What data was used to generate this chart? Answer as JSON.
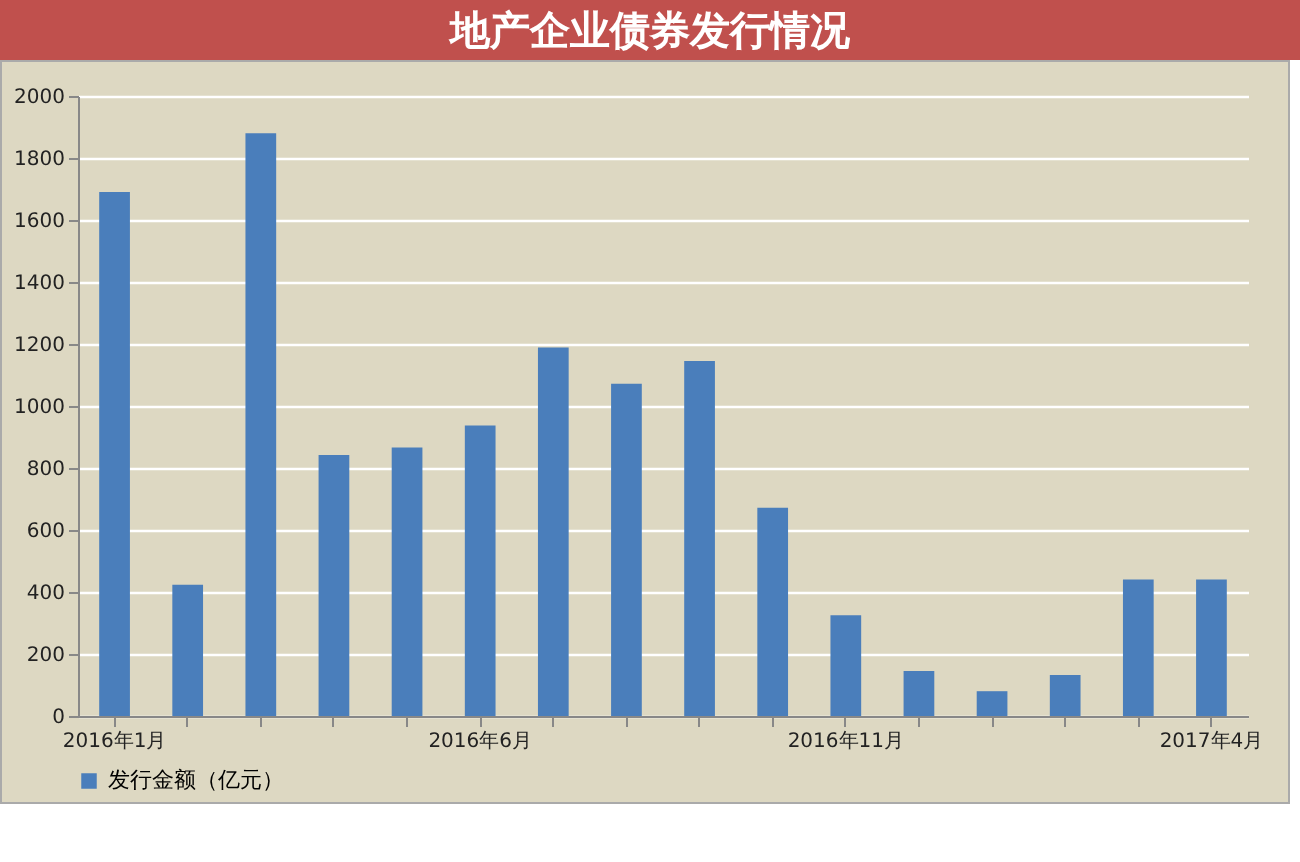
{
  "chart_data": {
    "type": "bar",
    "title": "地产企业债券发行情况",
    "categories": [
      "2016年1月",
      null,
      null,
      null,
      null,
      "2016年6月",
      null,
      null,
      null,
      null,
      "2016年11月",
      null,
      null,
      null,
      null,
      "2017年4月"
    ],
    "series": [
      {
        "name": "发行金额（亿元）",
        "color": "#4a7ebb",
        "values": [
          1690,
          423,
          1880,
          842,
          866,
          937,
          1189,
          1072,
          1145,
          672,
          325,
          145,
          80,
          132,
          440,
          440
        ]
      }
    ],
    "ylim": [
      0,
      2000
    ],
    "yticks": [
      0,
      200,
      400,
      600,
      800,
      1000,
      1200,
      1400,
      1600,
      1800,
      2000
    ],
    "grid": "y",
    "legend": "bottom"
  }
}
